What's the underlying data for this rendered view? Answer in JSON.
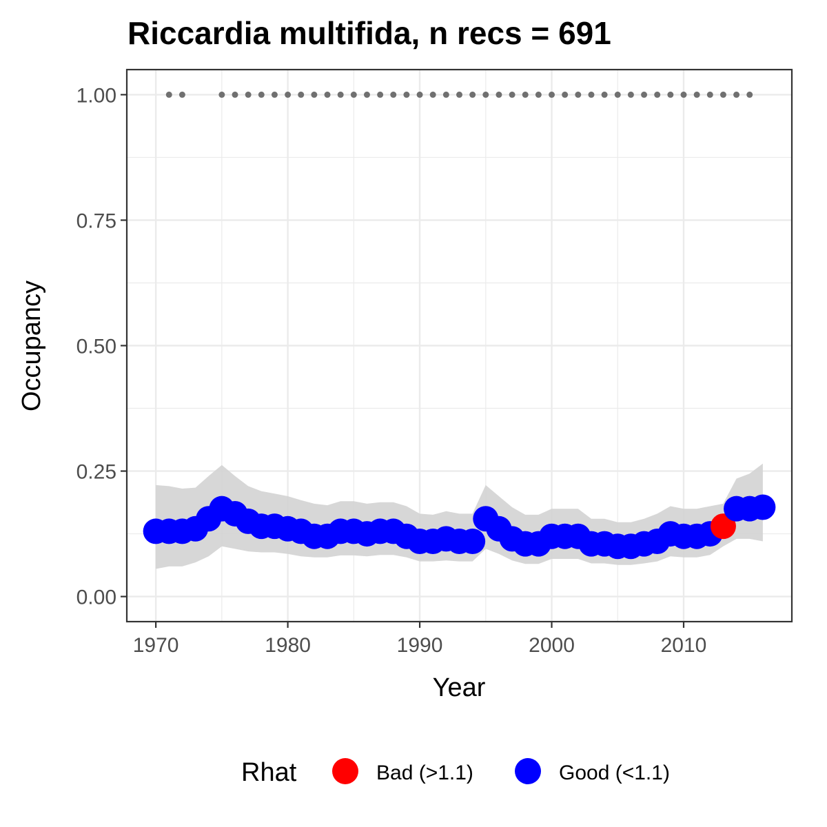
{
  "chart_data": {
    "type": "scatter",
    "title": "Riccardia multifida, n recs = 691",
    "xlabel": "Year",
    "ylabel": "Occupancy",
    "xlim": [
      1967.8,
      2018.2
    ],
    "ylim": [
      -0.05,
      1.05
    ],
    "x_ticks": [
      1970,
      1980,
      1990,
      2000,
      2010
    ],
    "x_tick_labels": [
      "1970",
      "1980",
      "1990",
      "2000",
      "2010"
    ],
    "y_ticks": [
      0,
      0.25,
      0.5,
      0.75,
      1
    ],
    "y_tick_labels": [
      "0.00",
      "0.25",
      "0.50",
      "0.75",
      "1.00"
    ],
    "grid": true,
    "legend": {
      "title": "Rhat",
      "position": "bottom",
      "entries": [
        {
          "label": "Bad (>1.1)",
          "color": "#ff0000"
        },
        {
          "label": "Good (<1.1)",
          "color": "#0000ff"
        }
      ]
    },
    "series": [
      {
        "x": [
          1970,
          1971,
          1972,
          1973,
          1974,
          1975,
          1976,
          1977,
          1978,
          1979,
          1980,
          1981,
          1982,
          1983,
          1984,
          1985,
          1986,
          1987,
          1988,
          1989,
          1990,
          1991,
          1992,
          1993,
          1994,
          1995,
          1996,
          1997,
          1998,
          1999,
          2000,
          2001,
          2002,
          2003,
          2004,
          2005,
          2006,
          2007,
          2008,
          2009,
          2010,
          2011,
          2012,
          2013,
          2014,
          2015,
          2016
        ],
        "y": [
          0.13,
          0.13,
          0.13,
          0.135,
          0.155,
          0.175,
          0.165,
          0.15,
          0.14,
          0.14,
          0.135,
          0.13,
          0.12,
          0.12,
          0.13,
          0.13,
          0.125,
          0.13,
          0.13,
          0.12,
          0.11,
          0.11,
          0.115,
          0.11,
          0.11,
          0.155,
          0.135,
          0.115,
          0.105,
          0.105,
          0.12,
          0.12,
          0.12,
          0.105,
          0.105,
          0.1,
          0.1,
          0.105,
          0.11,
          0.125,
          0.12,
          0.12,
          0.125,
          0.14,
          0.175,
          0.175,
          0.178
        ],
        "lower": [
          0.055,
          0.06,
          0.06,
          0.068,
          0.08,
          0.1,
          0.095,
          0.09,
          0.088,
          0.088,
          0.085,
          0.08,
          0.078,
          0.078,
          0.082,
          0.082,
          0.08,
          0.083,
          0.083,
          0.078,
          0.07,
          0.07,
          0.072,
          0.07,
          0.07,
          0.095,
          0.085,
          0.072,
          0.065,
          0.065,
          0.075,
          0.075,
          0.075,
          0.066,
          0.066,
          0.063,
          0.063,
          0.066,
          0.07,
          0.08,
          0.078,
          0.078,
          0.083,
          0.1,
          0.115,
          0.115,
          0.11
        ],
        "upper": [
          0.222,
          0.22,
          0.215,
          0.217,
          0.24,
          0.262,
          0.24,
          0.22,
          0.21,
          0.205,
          0.2,
          0.192,
          0.185,
          0.182,
          0.19,
          0.19,
          0.185,
          0.188,
          0.188,
          0.18,
          0.165,
          0.163,
          0.17,
          0.165,
          0.165,
          0.222,
          0.2,
          0.178,
          0.163,
          0.163,
          0.175,
          0.175,
          0.175,
          0.155,
          0.155,
          0.148,
          0.148,
          0.155,
          0.165,
          0.18,
          0.175,
          0.175,
          0.18,
          0.185,
          0.235,
          0.245,
          0.265
        ],
        "rhat": [
          "good",
          "good",
          "good",
          "good",
          "good",
          "good",
          "good",
          "good",
          "good",
          "good",
          "good",
          "good",
          "good",
          "good",
          "good",
          "good",
          "good",
          "good",
          "good",
          "good",
          "good",
          "good",
          "good",
          "good",
          "good",
          "good",
          "good",
          "good",
          "good",
          "good",
          "good",
          "good",
          "good",
          "good",
          "good",
          "good",
          "good",
          "good",
          "good",
          "good",
          "good",
          "good",
          "good",
          "bad",
          "good",
          "good",
          "good"
        ],
        "point_colors": {
          "good": "#0000ff",
          "bad": "#ff0000"
        },
        "band_color": "#d3d3d3"
      },
      {
        "x": [
          1971,
          1972,
          1975,
          1976,
          1977,
          1978,
          1979,
          1980,
          1981,
          1982,
          1983,
          1984,
          1985,
          1986,
          1987,
          1988,
          1989,
          1990,
          1991,
          1992,
          1993,
          1994,
          1995,
          1996,
          1997,
          1998,
          1999,
          2000,
          2001,
          2002,
          2003,
          2004,
          2005,
          2006,
          2007,
          2008,
          2009,
          2010,
          2011,
          2012,
          2013,
          2014,
          2015
        ],
        "y": [
          1,
          1,
          1,
          1,
          1,
          1,
          1,
          1,
          1,
          1,
          1,
          1,
          1,
          1,
          1,
          1,
          1,
          1,
          1,
          1,
          1,
          1,
          1,
          1,
          1,
          1,
          1,
          1,
          1,
          1,
          1,
          1,
          1,
          1,
          1,
          1,
          1,
          1,
          1,
          1,
          1,
          1,
          1
        ],
        "color": "#707070"
      }
    ]
  }
}
